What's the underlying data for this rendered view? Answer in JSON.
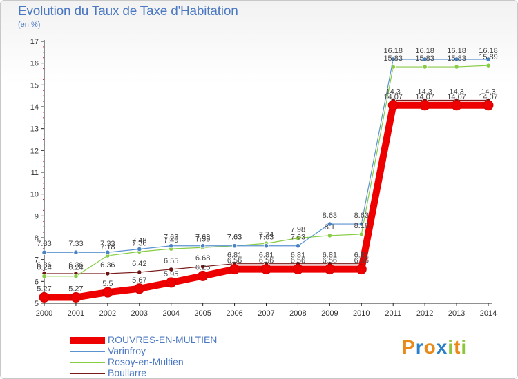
{
  "title": "Evolution du Taux de Taxe d'Habitation",
  "unit_label": "(en %)",
  "brand": {
    "letters": [
      "P",
      "r",
      "o",
      "x",
      "i",
      "t",
      "i"
    ],
    "colors": [
      "#e88a1a",
      "#2a80c8",
      "#e88a1a",
      "#2a80c8",
      "#8cc63f",
      "#e88a1a",
      "#8cc63f"
    ]
  },
  "chart_data": {
    "type": "line",
    "title": "Evolution du Taux de Taxe d'Habitation",
    "ylabel": "(en %)",
    "xlabel": "",
    "ylim": [
      5,
      17
    ],
    "y_ticks": [
      5,
      6,
      7,
      8,
      9,
      10,
      11,
      12,
      13,
      14,
      15,
      16,
      17
    ],
    "x": [
      "2000",
      "2001",
      "2002",
      "2003",
      "2004",
      "2005",
      "2006",
      "2007",
      "2008",
      "2009",
      "2010",
      "2011",
      "2012",
      "2013",
      "2014"
    ],
    "series": [
      {
        "name": "Boullarre",
        "color": "#7a1a1a",
        "values": [
          6.36,
          6.36,
          6.36,
          6.42,
          6.55,
          6.68,
          6.81,
          6.81,
          6.81,
          6.81,
          6.81,
          14.3,
          14.3,
          14.3,
          14.3
        ],
        "labels": [
          "6.36",
          "6.36",
          "6.36",
          "6.42",
          "6.55",
          "6.68",
          "6.81",
          "6.81",
          "6.81",
          "6.81",
          "6.81",
          "14.3",
          "14.3",
          "14.3",
          "14.3"
        ]
      },
      {
        "name": "Rosoy-en-Multien",
        "color": "#88cc44",
        "values": [
          6.24,
          6.24,
          7.18,
          7.36,
          7.49,
          7.55,
          7.63,
          7.74,
          7.98,
          8.1,
          8.16,
          15.83,
          15.83,
          15.83,
          15.89
        ],
        "labels": [
          "6.24",
          "6.24",
          "7.18",
          "7.36",
          "7.49",
          "7.55",
          "7.63",
          "7.74",
          "7.98",
          "8.1",
          "8.16",
          "15.83",
          "15.83",
          "15.83",
          "15.89"
        ]
      },
      {
        "name": "Varinfroy",
        "color": "#5b93d1",
        "values": [
          7.33,
          7.33,
          7.33,
          7.48,
          7.63,
          7.63,
          7.63,
          7.63,
          7.63,
          8.63,
          8.63,
          16.18,
          16.18,
          16.18,
          16.18
        ],
        "labels": [
          "7.33",
          "7.33",
          "7.33",
          "7.48",
          "7.63",
          "7.63",
          "7.63",
          "7.63",
          "7.63",
          "8.63",
          "8.63",
          "16.18",
          "16.18",
          "16.18",
          "16.18"
        ]
      },
      {
        "name": "ROUVRES-EN-MULTIEN",
        "color": "#ee0000",
        "values": [
          5.27,
          5.27,
          5.5,
          5.67,
          5.95,
          6.25,
          6.56,
          6.56,
          6.56,
          6.56,
          6.56,
          14.07,
          14.07,
          14.07,
          14.07
        ],
        "labels": [
          "5.27",
          "5.27",
          "5.5",
          "5.67",
          "5.95",
          "6.25",
          "6.56",
          "6.56",
          "6.56",
          "6.56",
          "6.56",
          "14.07",
          "14.07",
          "14.07",
          "14.07"
        ]
      }
    ],
    "legend_order": [
      "ROUVRES-EN-MULTIEN",
      "Varinfroy",
      "Rosoy-en-Multien",
      "Boullarre"
    ],
    "legend_position": "bottom-left",
    "grid": false
  }
}
